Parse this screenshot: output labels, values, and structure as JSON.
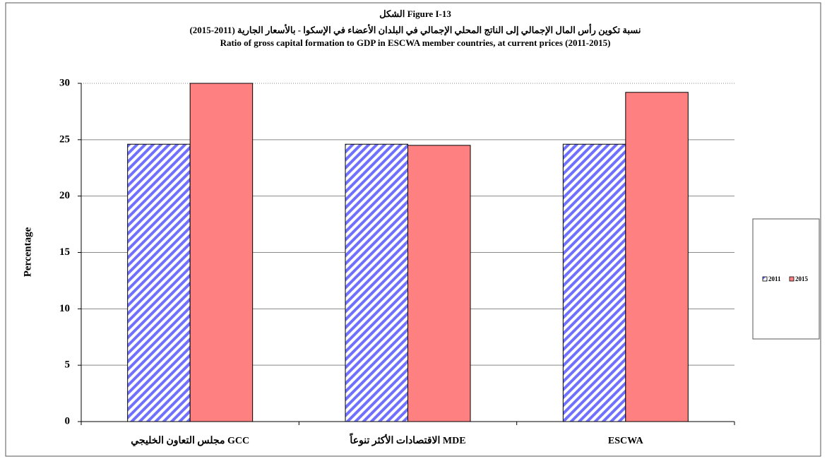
{
  "chart_data": {
    "type": "bar",
    "title": "الشكل Figure I-13",
    "subtitle_ar": "نسبة تكوين رأس المال الإجمالي إلى الناتج المحلي الإجمالي في البلدان الأعضاء في الإسكوا -  بالأسعار الجارية (2011-2015)",
    "subtitle_en": "Ratio of gross capital formation to GDP in ESCWA member countries, at current prices (2011-2015)",
    "ylabel": "Percentage",
    "categories": [
      "مجلس التعاون الخليجي GCC",
      "الاقتصادات الأكثر تنوعاً MDE",
      "ESCWA"
    ],
    "series": [
      {
        "name": "2011",
        "color": "#7070ff",
        "values": [
          24.6,
          24.6,
          24.6
        ]
      },
      {
        "name": "2015",
        "color": "#ff8080",
        "values": [
          30,
          24.5,
          29.2
        ]
      }
    ],
    "ylim": [
      0,
      30
    ],
    "yticks": [
      0,
      5,
      10,
      15,
      20,
      25,
      30
    ],
    "grid": true,
    "legend": "right"
  }
}
